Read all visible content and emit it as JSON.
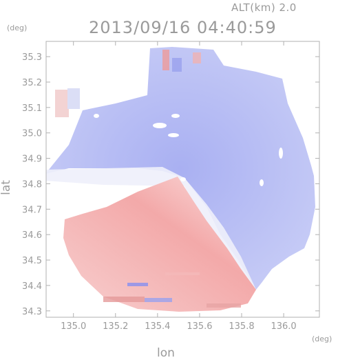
{
  "header": {
    "altitude_label": "ALT(km) 2.0",
    "timestamp": "2013/09/16 04:40:59"
  },
  "units": {
    "lat": "(deg)",
    "lon": "(deg)"
  },
  "axes": {
    "xlabel": "lon",
    "ylabel": "lat",
    "xlim": [
      134.87,
      136.17
    ],
    "ylim": [
      34.275,
      35.36
    ],
    "xticks": [
      "135.0",
      "135.2",
      "135.4",
      "135.6",
      "135.8",
      "136.0"
    ],
    "yticks": [
      "34.3",
      "34.4",
      "34.5",
      "34.6",
      "34.7",
      "34.8",
      "34.9",
      "35.0",
      "35.1",
      "35.2",
      "35.3"
    ]
  },
  "colors": {
    "approaching": "#8890f0",
    "receding": "#f08c8c",
    "frame": "#b0b0b0"
  }
}
